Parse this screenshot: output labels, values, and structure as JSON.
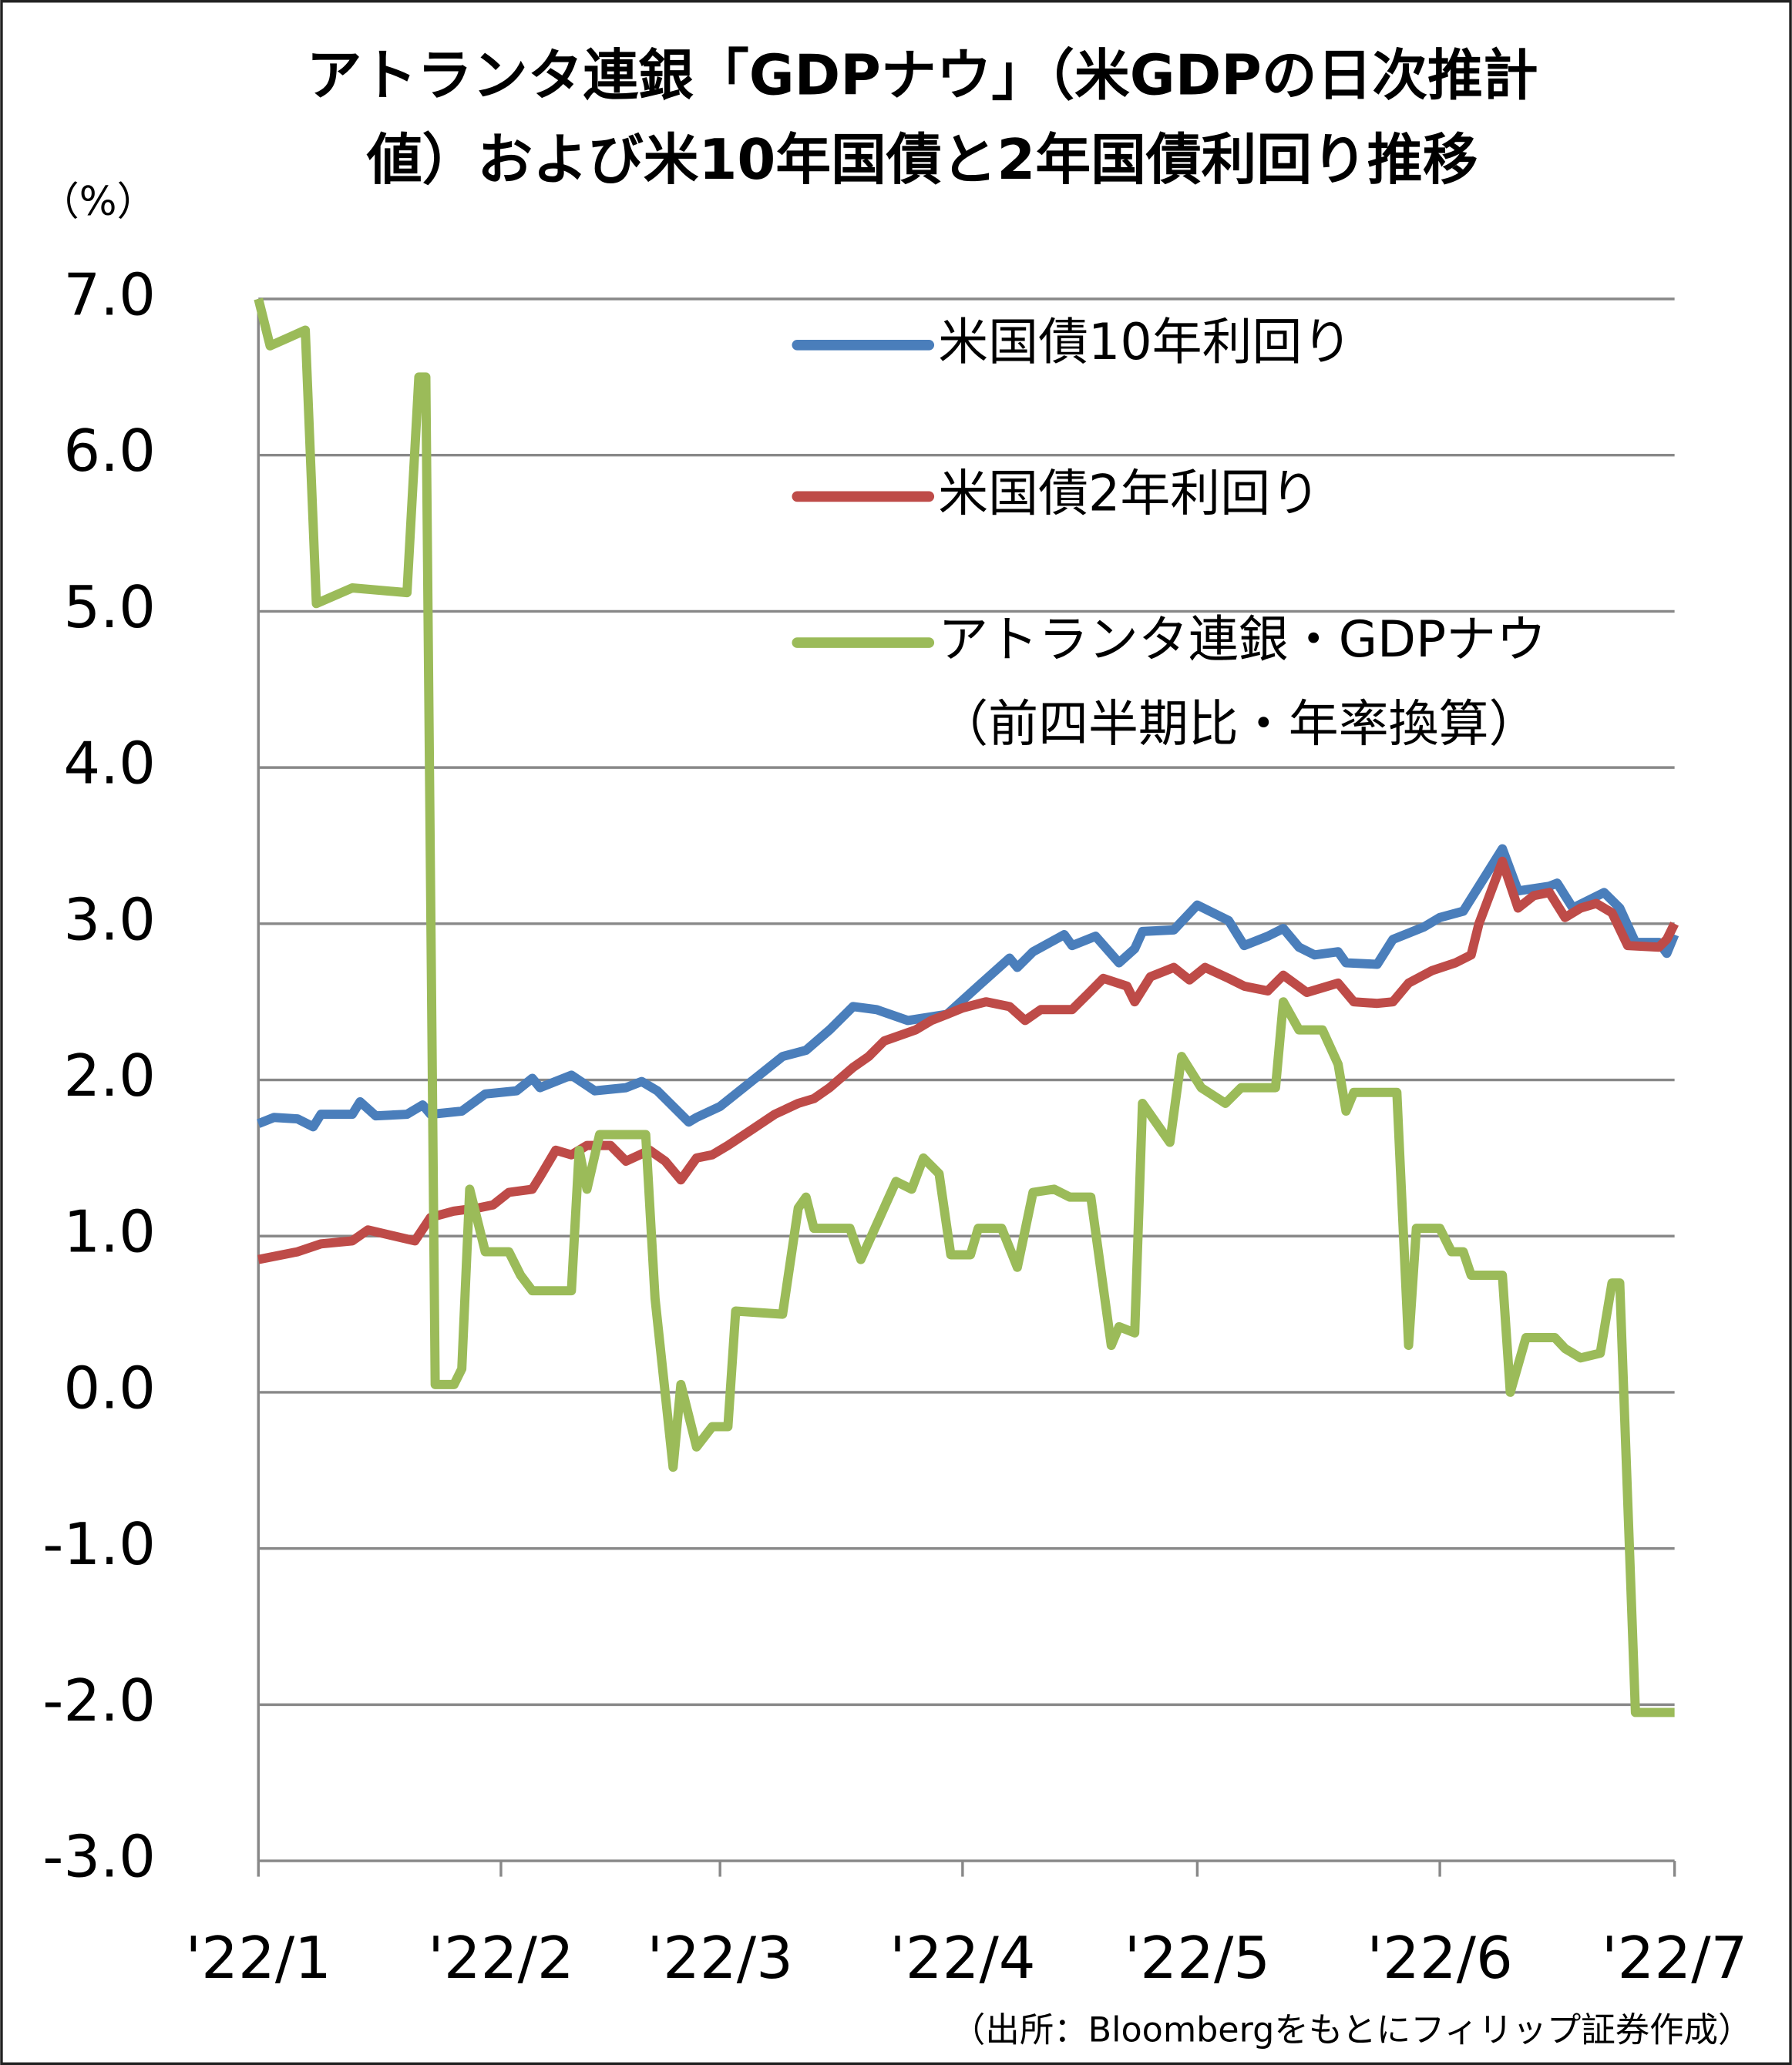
{
  "chart_data": {
    "type": "line",
    "title": "アトランタ連銀「GDPナウ」（米GDPの日次推計\n値）および米10年国債と2年国債利回り推移",
    "y_unit": "（%）",
    "source": "（出所：Bloombergをもとにフィリップ証券作成）",
    "xlim": [
      0,
      181
    ],
    "xticks": [
      {
        "value": 0,
        "label": "'22/1"
      },
      {
        "value": 31,
        "label": "'22/2"
      },
      {
        "value": 59,
        "label": "'22/3"
      },
      {
        "value": 90,
        "label": "'22/4"
      },
      {
        "value": 120,
        "label": "'22/5"
      },
      {
        "value": 151,
        "label": "'22/6"
      },
      {
        "value": 181,
        "label": "'22/7"
      }
    ],
    "ylim": [
      -3,
      7
    ],
    "yticks": [
      {
        "value": 7,
        "label": "7.0"
      },
      {
        "value": 6,
        "label": "6.0"
      },
      {
        "value": 5,
        "label": "5.0"
      },
      {
        "value": 4,
        "label": "4.0"
      },
      {
        "value": 3,
        "label": "3.0"
      },
      {
        "value": 2,
        "label": "2.0"
      },
      {
        "value": 1,
        "label": "1.0"
      },
      {
        "value": 0,
        "label": "0.0"
      },
      {
        "value": -1,
        "label": "-1.0"
      },
      {
        "value": -2,
        "label": "-2.0"
      },
      {
        "value": -3,
        "label": "-3.0"
      }
    ],
    "negative_tick_color": "#ff0000",
    "grid": true,
    "legend": "upper right",
    "series": [
      {
        "name": "米国債10年利回り",
        "color": "#4a7ebb",
        "x": [
          0,
          2,
          5,
          7,
          8,
          12,
          13,
          15,
          19,
          21,
          22,
          26,
          29,
          33,
          35,
          36,
          40,
          43,
          47,
          49,
          51,
          55,
          56,
          59,
          63,
          67,
          70,
          73,
          76,
          79,
          83,
          88,
          92,
          96,
          97,
          99,
          103,
          104,
          107,
          110,
          112,
          113,
          117,
          120,
          124,
          126,
          129,
          131,
          133,
          135,
          138,
          139,
          143,
          145,
          149,
          151,
          154,
          159,
          161,
          165,
          166,
          168,
          172,
          174,
          176,
          179,
          180,
          181
        ],
        "values": [
          1.72,
          1.76,
          1.75,
          1.7,
          1.78,
          1.78,
          1.86,
          1.77,
          1.78,
          1.84,
          1.78,
          1.8,
          1.91,
          1.93,
          2.01,
          1.95,
          2.03,
          1.93,
          1.95,
          1.99,
          1.93,
          1.73,
          1.76,
          1.83,
          1.99,
          2.15,
          2.19,
          2.32,
          2.47,
          2.45,
          2.38,
          2.42,
          2.6,
          2.78,
          2.72,
          2.82,
          2.93,
          2.86,
          2.92,
          2.75,
          2.84,
          2.95,
          2.96,
          3.12,
          3.02,
          2.86,
          2.92,
          2.97,
          2.85,
          2.8,
          2.82,
          2.75,
          2.74,
          2.9,
          2.98,
          3.04,
          3.08,
          3.48,
          3.21,
          3.24,
          3.26,
          3.1,
          3.2,
          3.1,
          2.88,
          2.88,
          2.81,
          2.93
        ]
      },
      {
        "name": "米国債2年利回り",
        "color": "#be4b48",
        "x": [
          0,
          5,
          8,
          12,
          14,
          20,
          22,
          25,
          28,
          30,
          32,
          35,
          36,
          38,
          40,
          42,
          45,
          47,
          50,
          52,
          54,
          56,
          58,
          60,
          63,
          66,
          69,
          71,
          73,
          76,
          78,
          80,
          84,
          86,
          88,
          90,
          93,
          96,
          98,
          100,
          104,
          106,
          108,
          111,
          112,
          114,
          117,
          119,
          121,
          124,
          126,
          129,
          131,
          134,
          138,
          140,
          143,
          145,
          147,
          150,
          153,
          155,
          156,
          159,
          161,
          163,
          165,
          167,
          169,
          171,
          173,
          175,
          179,
          180,
          181
        ],
        "values": [
          0.85,
          0.9,
          0.95,
          0.97,
          1.04,
          0.97,
          1.12,
          1.16,
          1.18,
          1.2,
          1.28,
          1.3,
          1.38,
          1.55,
          1.52,
          1.58,
          1.58,
          1.48,
          1.55,
          1.48,
          1.36,
          1.5,
          1.52,
          1.58,
          1.68,
          1.78,
          1.85,
          1.88,
          1.95,
          2.08,
          2.15,
          2.25,
          2.32,
          2.38,
          2.42,
          2.46,
          2.5,
          2.47,
          2.38,
          2.45,
          2.45,
          2.55,
          2.65,
          2.6,
          2.5,
          2.66,
          2.72,
          2.64,
          2.72,
          2.65,
          2.6,
          2.57,
          2.67,
          2.56,
          2.62,
          2.5,
          2.49,
          2.5,
          2.62,
          2.7,
          2.75,
          2.8,
          3.0,
          3.4,
          3.1,
          3.18,
          3.2,
          3.04,
          3.1,
          3.13,
          3.07,
          2.86,
          2.85,
          2.9,
          3.0
        ]
      },
      {
        "name": "アトランタ連銀・GDPナウ\n（前四半期比・年率換算）",
        "color": "#9bbb59",
        "x": [
          0,
          1.5,
          6,
          7.4,
          12,
          19,
          20.5,
          21.4,
          22.6,
          25,
          26,
          27,
          29,
          32,
          33.5,
          35,
          40,
          41,
          42,
          43.6,
          49.5,
          50.7,
          53,
          54,
          56,
          58,
          60,
          61,
          67,
          69,
          70,
          71,
          75.6,
          77,
          81.5,
          83.5,
          85,
          87,
          88.5,
          91,
          92,
          95,
          97,
          99,
          101.7,
          103.7,
          106.4,
          109,
          110,
          112,
          113,
          116.5,
          118,
          120.5,
          123.6,
          125.6,
          130,
          131,
          133,
          136,
          138,
          139,
          140,
          145.5,
          147,
          148,
          151,
          152.5,
          154,
          155,
          159,
          160,
          162,
          165.7,
          167,
          169,
          171.5,
          173,
          174,
          176,
          181
        ],
        "values": [
          7.0,
          6.7,
          6.8,
          5.05,
          5.15,
          5.12,
          6.5,
          6.5,
          0.05,
          0.05,
          0.15,
          1.3,
          0.9,
          0.9,
          0.75,
          0.65,
          0.65,
          1.55,
          1.3,
          1.65,
          1.65,
          0.6,
          -0.48,
          0.05,
          -0.35,
          -0.22,
          -0.22,
          0.52,
          0.5,
          1.18,
          1.25,
          1.05,
          1.05,
          0.85,
          1.35,
          1.3,
          1.5,
          1.4,
          0.88,
          0.88,
          1.05,
          1.05,
          0.8,
          1.28,
          1.3,
          1.25,
          1.25,
          0.3,
          0.42,
          0.38,
          1.85,
          1.6,
          2.15,
          1.95,
          1.85,
          1.95,
          1.95,
          2.5,
          2.32,
          2.32,
          2.1,
          1.8,
          1.92,
          1.92,
          0.3,
          1.05,
          1.05,
          0.9,
          0.9,
          0.75,
          0.75,
          0.0,
          0.35,
          0.35,
          0.28,
          0.22,
          0.25,
          0.7,
          0.7,
          -2.05,
          -2.05
        ]
      }
    ]
  }
}
